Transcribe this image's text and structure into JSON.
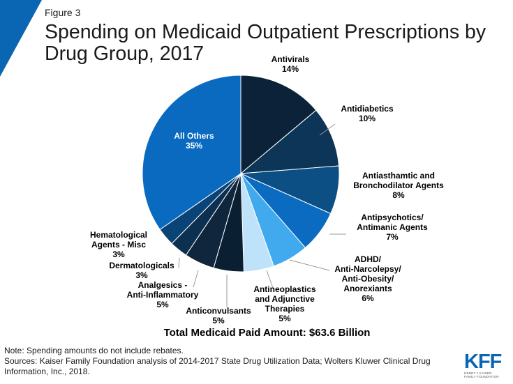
{
  "header": {
    "figure_label": "Figure 3",
    "title": "Spending on Medicaid Outpatient Prescriptions by Drug Group, 2017"
  },
  "chart_data": {
    "type": "pie",
    "title": "Spending on Medicaid Outpatient Prescriptions by Drug Group, 2017",
    "slices": [
      {
        "label": [
          "Antivirals"
        ],
        "pct_label": "14%",
        "value": 14,
        "color": "#0b2238"
      },
      {
        "label": [
          "Antidiabetics"
        ],
        "pct_label": "10%",
        "value": 10,
        "color": "#0d3558"
      },
      {
        "label": [
          "Antiasthamtic and",
          "Bronchodilator Agents"
        ],
        "pct_label": "8%",
        "value": 8,
        "color": "#0b4f85"
      },
      {
        "label": [
          "Antipsychotics/",
          "Antimanic Agents"
        ],
        "pct_label": "7%",
        "value": 7,
        "color": "#0a6bc0"
      },
      {
        "label": [
          "ADHD/",
          "Anti-Narcolepsy/",
          "Anti-Obesity/",
          "Anorexiants"
        ],
        "pct_label": "6%",
        "value": 6,
        "color": "#41a9ee"
      },
      {
        "label": [
          "Antineoplastics",
          "and Adjunctive",
          "Therapies"
        ],
        "pct_label": "5%",
        "value": 5,
        "color": "#bfe2fb"
      },
      {
        "label": [
          "Anticonvulsants"
        ],
        "pct_label": "5%",
        "value": 5,
        "color": "#0b1f33"
      },
      {
        "label": [
          "Analgesics -",
          "Anti-Inflammatory"
        ],
        "pct_label": "5%",
        "value": 5,
        "color": "#10263d"
      },
      {
        "label": [
          "Dermatologicals"
        ],
        "pct_label": "3%",
        "value": 3,
        "color": "#0c3050"
      },
      {
        "label": [
          "Hematological",
          "Agents - Misc"
        ],
        "pct_label": "3%",
        "value": 3,
        "color": "#0a4476"
      },
      {
        "label": [
          "All Others"
        ],
        "pct_label": "35%",
        "value": 35,
        "color": "#0a6ac0"
      }
    ],
    "total_label": "Total Medicaid Paid Amount: $63.6 Billion"
  },
  "footer": {
    "note": "Note: Spending amounts do not include rebates.",
    "sources": "Sources: Kaiser Family Foundation analysis of 2014-2017 State Drug Utilization Data; Wolters Kluwer Clinical Drug Information, Inc., 2018."
  },
  "logo": {
    "text": "KFF",
    "subtext": [
      "HENRY J KAISER",
      "FAMILY FOUNDATION"
    ],
    "color": "#0a65b2"
  },
  "colors": {
    "accent": "#0a65b2"
  }
}
